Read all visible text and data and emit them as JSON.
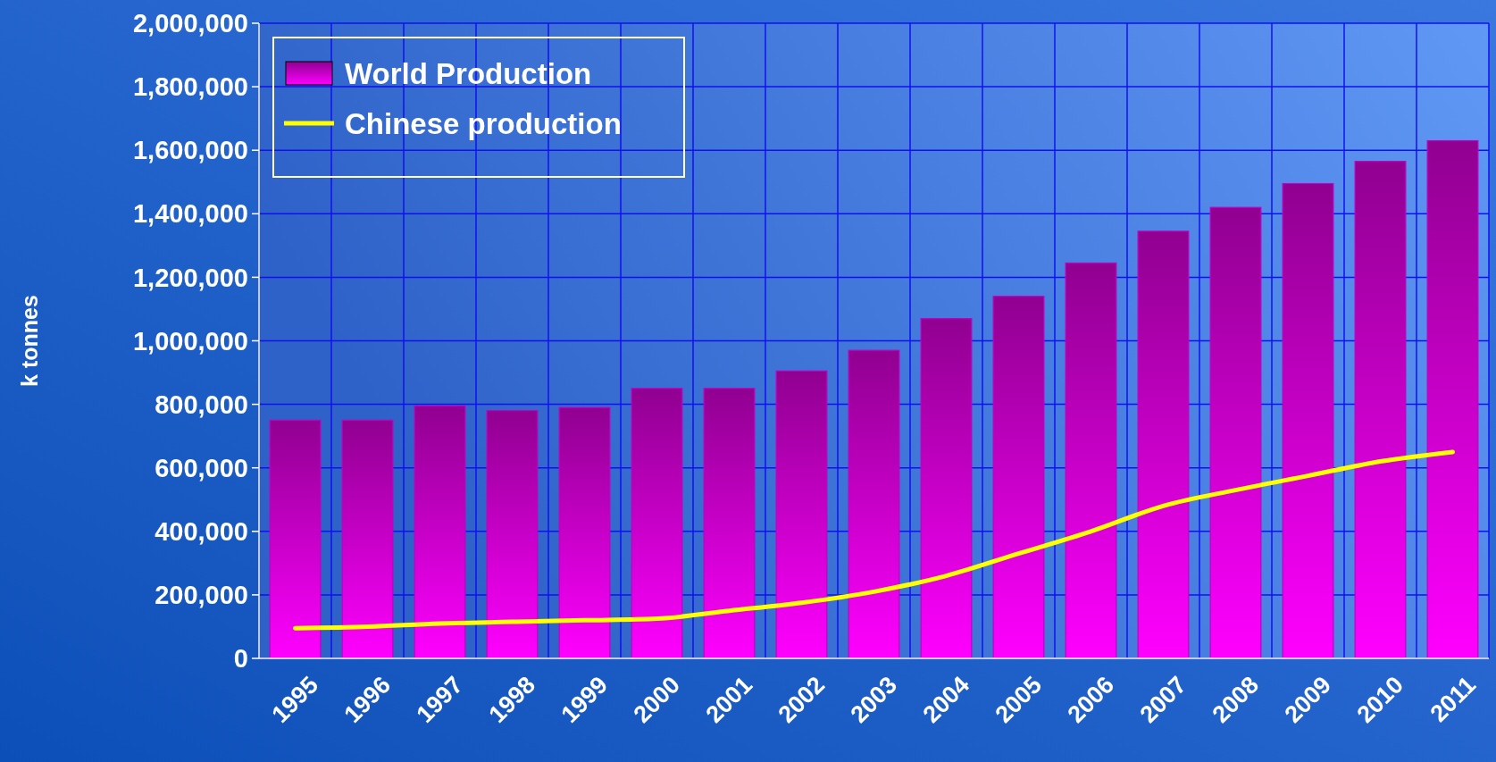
{
  "chart_data": {
    "type": "bar",
    "ylabel": "k tonnes",
    "categories": [
      "1995",
      "1996",
      "1997",
      "1998",
      "1999",
      "2000",
      "2001",
      "2002",
      "2003",
      "2004",
      "2005",
      "2006",
      "2007",
      "2008",
      "2009",
      "2010",
      "2011"
    ],
    "series": [
      {
        "name": "World Production",
        "color": "#c000c0",
        "values": [
          750000,
          750000,
          795000,
          780000,
          790000,
          850000,
          850000,
          905000,
          970000,
          1070000,
          1140000,
          1245000,
          1345000,
          1420000,
          1495000,
          1565000,
          1630000
        ]
      },
      {
        "name": "Chinese production",
        "type": "line",
        "color": "#ffff00",
        "values": [
          95000,
          100000,
          110000,
          115000,
          120000,
          125000,
          150000,
          175000,
          210000,
          260000,
          330000,
          400000,
          480000,
          530000,
          575000,
          620000,
          650000
        ]
      }
    ],
    "ylim": [
      0,
      2000000
    ],
    "yticks": [
      0,
      {
        "value": 200000,
        "label": "200,000"
      },
      {
        "value": 400000,
        "label": "400,000"
      },
      {
        "value": 600000,
        "label": "600,000"
      },
      {
        "value": 800000,
        "label": "800,000"
      },
      {
        "value": 1000000,
        "label": "1,000,000"
      },
      {
        "value": 1200000,
        "label": "1,200,000"
      },
      {
        "value": 1400000,
        "label": "1,400,000"
      },
      {
        "value": 1600000,
        "label": "1,600,000"
      },
      {
        "value": 1800000,
        "label": "1,800,000"
      },
      {
        "value": 2000000,
        "label": "2,000,000"
      }
    ],
    "grid": true,
    "legend": "top left",
    "line_style": "solid",
    "marker": "none"
  }
}
